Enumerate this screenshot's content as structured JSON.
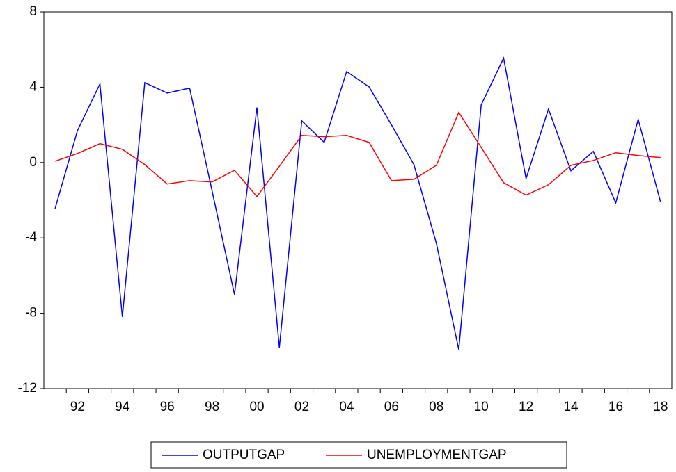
{
  "chart_data": {
    "type": "line",
    "categories": [
      null,
      "92",
      null,
      "94",
      null,
      "96",
      null,
      "98",
      null,
      "00",
      null,
      "02",
      null,
      "04",
      null,
      "06",
      null,
      "08",
      null,
      "10",
      null,
      "12",
      null,
      "14",
      null,
      "16",
      null,
      "18"
    ],
    "series": [
      {
        "name": "OUTPUTGAP",
        "color": "#0000ff",
        "values": [
          -2.44,
          1.7,
          4.17,
          -8.19,
          4.24,
          3.69,
          3.95,
          -1.5,
          -7.01,
          2.92,
          -9.82,
          2.21,
          1.07,
          4.83,
          4.02,
          2.0,
          -0.11,
          -4.28,
          -9.93,
          3.06,
          5.54,
          -0.85,
          2.84,
          -0.44,
          0.59,
          -2.14,
          2.29,
          -2.1
        ]
      },
      {
        "name": "UNEMPLOYMENTGAP",
        "color": "#ff0000",
        "values": [
          0.07,
          0.48,
          1.0,
          0.7,
          -0.11,
          -1.14,
          -0.96,
          -1.03,
          -0.41,
          -1.81,
          -0.2,
          1.44,
          1.37,
          1.44,
          1.07,
          -0.96,
          -0.89,
          -0.15,
          2.66,
          0.8,
          -1.07,
          -1.73,
          -1.18,
          -0.15,
          0.11,
          0.52,
          0.37,
          0.26
        ]
      }
    ],
    "ylim": [
      -12,
      8
    ],
    "yticks": [
      -12,
      -8,
      -4,
      0,
      4,
      8
    ],
    "grid": false,
    "legend": "bottom"
  }
}
